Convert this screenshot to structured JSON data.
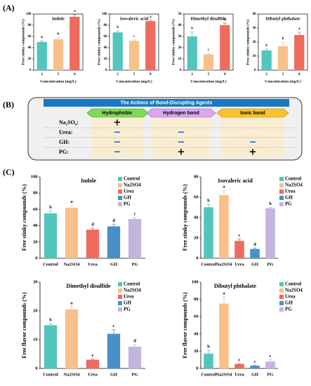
{
  "panels": [
    "(A)",
    "(B)",
    "(C)"
  ],
  "chart_data": [
    {
      "type": "bar",
      "title": "Indole",
      "xlabel": "Concentration (mg/L)",
      "ylabel": "Free stinky compounds (%)",
      "categories": [
        "2",
        "5",
        "8"
      ],
      "values": [
        50,
        55,
        95
      ],
      "errors": [
        2,
        3,
        4
      ],
      "letters": [
        "b",
        "b",
        "a"
      ],
      "colors": [
        "#52c5bd",
        "#f9c089",
        "#ee6b5e"
      ],
      "ylim": [
        0,
        100
      ],
      "yticks": [
        0,
        20,
        40,
        60,
        80,
        100
      ]
    },
    {
      "type": "bar",
      "title": "Isovaleric acid",
      "xlabel": "Concentration (mg/L)",
      "ylabel": "Free stinky compounds (%)",
      "categories": [
        "2",
        "5",
        "8"
      ],
      "values": [
        67,
        52,
        87
      ],
      "errors": [
        3,
        2,
        2
      ],
      "letters": [
        "b",
        "c",
        "a"
      ],
      "colors": [
        "#52c5bd",
        "#f9c089",
        "#ee6b5e"
      ],
      "ylim": [
        0,
        100
      ],
      "yticks": [
        0,
        20,
        40,
        60,
        80,
        100
      ]
    },
    {
      "type": "bar",
      "title": "Dimethyl disulfide",
      "xlabel": "Concentration (mg/L)",
      "ylabel": "Free stinky compounds (%)",
      "categories": [
        "2",
        "5",
        "8"
      ],
      "values": [
        30,
        14,
        40
      ],
      "errors": [
        4,
        1,
        2
      ],
      "letters": [
        "b",
        "c",
        "a"
      ],
      "colors": [
        "#52c5bd",
        "#f9c089",
        "#ee6b5e"
      ],
      "ylim": [
        0,
        50
      ],
      "yticks": [
        0,
        10,
        20,
        30,
        40,
        50
      ]
    },
    {
      "type": "bar",
      "title": "Dibutyl phthalate",
      "xlabel": "Concentration (mg/L)",
      "ylabel": "Free stinky compounds (%)",
      "categories": [
        "2",
        "5",
        "8"
      ],
      "values": [
        14,
        17,
        25
      ],
      "errors": [
        1,
        3,
        2
      ],
      "letters": [
        "b",
        "b",
        "a"
      ],
      "colors": [
        "#52c5bd",
        "#f9c089",
        "#ee6b5e"
      ],
      "ylim": [
        0,
        40
      ],
      "yticks": [
        0,
        10,
        20,
        30,
        40
      ]
    },
    {
      "type": "bar",
      "title": "Indole",
      "ylabel": "Free stinky compounds (%)",
      "legend": true,
      "categories": [
        "Control",
        "Na2SO4",
        "Urea",
        "GH",
        "PG"
      ],
      "values": [
        55,
        62,
        35,
        39,
        48
      ],
      "errors": [
        3,
        3,
        2,
        3,
        2
      ],
      "letters": [
        "b",
        "a",
        "d",
        "d",
        "c"
      ],
      "colors": [
        "#52c5bd",
        "#f9c089",
        "#ee6b5e",
        "#4a90c8",
        "#c3b5e0"
      ],
      "ylim": [
        0,
        100
      ],
      "yticks": [
        0,
        20,
        40,
        60,
        80,
        100
      ]
    },
    {
      "type": "bar",
      "title": "Isovaleric acid",
      "ylabel": "Free stinky compounds (%)",
      "legend": true,
      "categories": [
        "Control",
        "Na2SO4",
        "Urea",
        "GH",
        "PG"
      ],
      "values": [
        50,
        62,
        17,
        9,
        49
      ],
      "errors": [
        3,
        5,
        2,
        1,
        1
      ],
      "letters": [
        "b",
        "a",
        "c",
        "d",
        "b"
      ],
      "colors": [
        "#52c5bd",
        "#f9c089",
        "#ee6b5e",
        "#4a90c8",
        "#c3b5e0"
      ],
      "ylim": [
        0,
        80
      ],
      "yticks": [
        0,
        20,
        40,
        60,
        80
      ]
    },
    {
      "type": "bar",
      "title": "Dimethyl disulfide",
      "ylabel": "Free flavor compounds (%)",
      "legend": true,
      "categories": [
        "Control",
        "Na2SO4",
        "Urea",
        "GH",
        "PG"
      ],
      "values": [
        15,
        20.5,
        3,
        12,
        7.5
      ],
      "errors": [
        0.6,
        1,
        0.3,
        1.5,
        0.8
      ],
      "letters": [
        "b",
        "a",
        "e",
        "c",
        "d"
      ],
      "colors": [
        "#52c5bd",
        "#f9c089",
        "#ee6b5e",
        "#4a90c8",
        "#c3b5e0"
      ],
      "ylim": [
        0,
        30
      ],
      "yticks": [
        0,
        10,
        20,
        30
      ]
    },
    {
      "type": "bar",
      "title": "Dibutyl phthalate",
      "ylabel": "Free flavor compounds (%)",
      "legend": true,
      "categories": [
        "Control",
        "Na2SO4",
        "Urea",
        "GH",
        "PG"
      ],
      "values": [
        17,
        75,
        5,
        3,
        8
      ],
      "errors": [
        4,
        8,
        0.5,
        0.5,
        2
      ],
      "letters": [
        "b",
        "a",
        "c",
        "c",
        "c"
      ],
      "colors": [
        "#52c5bd",
        "#f9c089",
        "#ee6b5e",
        "#4a90c8",
        "#c3b5e0"
      ],
      "ylim": [
        0,
        100
      ],
      "yticks": [
        0,
        20,
        40,
        60,
        80,
        100
      ]
    }
  ],
  "diagram": {
    "title": "The Actions of Bond-Disrupting Agents",
    "columns": [
      "Hydrophobic",
      "Hydrogen bond",
      "Ionic bond"
    ],
    "rows": [
      {
        "label": "Na₂SO₄:",
        "cells": [
          "+",
          null,
          null
        ]
      },
      {
        "label": "Urea:",
        "cells": [
          "−",
          "−",
          null
        ]
      },
      {
        "label": "GH:",
        "cells": [
          "−",
          "−",
          "−"
        ]
      },
      {
        "label": "PG:",
        "cells": [
          "−",
          "+",
          "+"
        ]
      }
    ]
  }
}
